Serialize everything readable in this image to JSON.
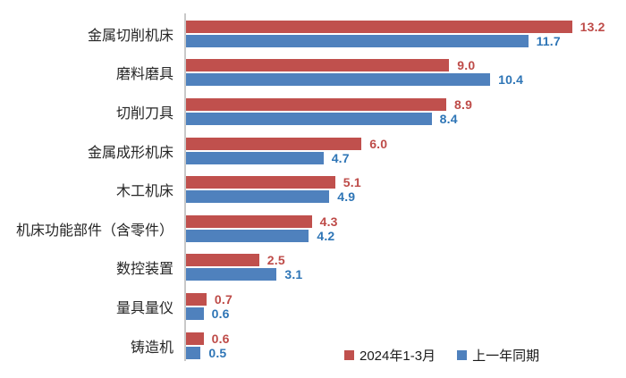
{
  "chart_data": {
    "type": "bar",
    "orientation": "horizontal",
    "title": "",
    "xlabel": "",
    "ylabel": "",
    "xlim": [
      0,
      15
    ],
    "grid": false,
    "data_labels": true,
    "legend_position": "bottom",
    "axis_line_color": "#c9c9c9",
    "categories": [
      "金属切削机床",
      "磨料磨具",
      "切削刀具",
      "金属成形机床",
      "木工机床",
      "机床功能部件（含零件）",
      "数控装置",
      "量具量仪",
      "铸造机"
    ],
    "series": [
      {
        "name": "2024年1-3月",
        "color": "#c0504d",
        "label_color": "#be4b48",
        "values": [
          13.2,
          9.0,
          8.9,
          6.0,
          5.1,
          4.3,
          2.5,
          0.7,
          0.6
        ]
      },
      {
        "name": "上一年同期",
        "color": "#4f81bd",
        "label_color": "#2e75b6",
        "values": [
          11.7,
          10.4,
          8.4,
          4.7,
          4.9,
          4.2,
          3.1,
          0.6,
          0.5
        ]
      }
    ]
  }
}
